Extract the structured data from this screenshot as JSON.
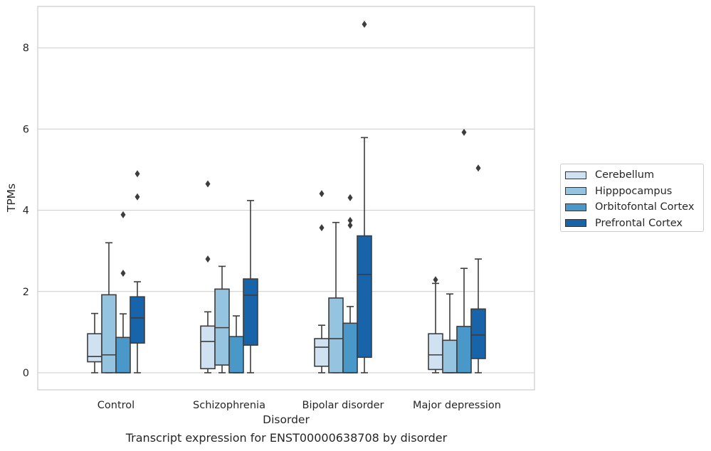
{
  "caption": "Transcript expression for ENST00000638708 by disorder",
  "chart_data": {
    "type": "boxplot",
    "title": "",
    "xlabel": "Disorder",
    "ylabel": "TPMs",
    "categories": [
      "Control",
      "Schizophrenia",
      "Bipolar disorder",
      "Major depression"
    ],
    "ylim": [
      -0.4,
      9.1
    ],
    "yticks": [
      "0",
      "2",
      "4",
      "6",
      "8"
    ],
    "grid": "horizontal",
    "legend_position": "right",
    "series": [
      {
        "name": "Cerebellum",
        "color": "#d0e1f2",
        "boxes": [
          {
            "whisker_low": 0.0,
            "q1": 0.27,
            "median": 0.4,
            "q3": 0.96,
            "whisker_high": 1.46,
            "outliers": []
          },
          {
            "whisker_low": 0.0,
            "q1": 0.1,
            "median": 0.77,
            "q3": 1.15,
            "whisker_high": 1.5,
            "outliers": [
              2.8,
              4.65
            ]
          },
          {
            "whisker_low": 0.0,
            "q1": 0.16,
            "median": 0.63,
            "q3": 0.84,
            "whisker_high": 1.17,
            "outliers": [
              3.57,
              4.41
            ]
          },
          {
            "whisker_low": 0.0,
            "q1": 0.08,
            "median": 0.44,
            "q3": 0.96,
            "whisker_high": 2.2,
            "outliers": [
              2.29
            ]
          }
        ]
      },
      {
        "name": "Hipppocampus",
        "color": "#94c4df",
        "boxes": [
          {
            "whisker_low": 0.0,
            "q1": 0.0,
            "median": 0.44,
            "q3": 1.92,
            "whisker_high": 3.2,
            "outliers": []
          },
          {
            "whisker_low": 0.0,
            "q1": 0.19,
            "median": 1.11,
            "q3": 2.06,
            "whisker_high": 2.62,
            "outliers": []
          },
          {
            "whisker_low": 0.0,
            "q1": 0.0,
            "median": 0.84,
            "q3": 1.84,
            "whisker_high": 3.7,
            "outliers": []
          },
          {
            "whisker_low": 0.0,
            "q1": 0.0,
            "median": 0.0,
            "q3": 0.8,
            "whisker_high": 1.94,
            "outliers": []
          }
        ]
      },
      {
        "name": "Orbitofontal Cortex",
        "color": "#4a98c9",
        "boxes": [
          {
            "whisker_low": 0.0,
            "q1": 0.0,
            "median": 0.0,
            "q3": 0.87,
            "whisker_high": 1.45,
            "outliers": [
              2.45,
              3.89
            ]
          },
          {
            "whisker_low": 0.0,
            "q1": 0.0,
            "median": 0.0,
            "q3": 0.89,
            "whisker_high": 1.4,
            "outliers": []
          },
          {
            "whisker_low": 0.0,
            "q1": 0.0,
            "median": 0.0,
            "q3": 1.22,
            "whisker_high": 1.63,
            "outliers": [
              3.63,
              3.75,
              4.31
            ]
          },
          {
            "whisker_low": 0.0,
            "q1": 0.0,
            "median": 0.0,
            "q3": 1.14,
            "whisker_high": 2.57,
            "outliers": [
              5.92
            ]
          }
        ]
      },
      {
        "name": "Prefrontal Cortex",
        "color": "#1764ab",
        "boxes": [
          {
            "whisker_low": 0.0,
            "q1": 0.73,
            "median": 1.35,
            "q3": 1.87,
            "whisker_high": 2.24,
            "outliers": [
              4.33,
              4.9
            ]
          },
          {
            "whisker_low": 0.0,
            "q1": 0.68,
            "median": 1.91,
            "q3": 2.31,
            "whisker_high": 4.24,
            "outliers": []
          },
          {
            "whisker_low": 0.0,
            "q1": 0.38,
            "median": 2.42,
            "q3": 3.37,
            "whisker_high": 5.79,
            "outliers": [
              8.58
            ]
          },
          {
            "whisker_low": 0.0,
            "q1": 0.35,
            "median": 0.93,
            "q3": 1.57,
            "whisker_high": 2.8,
            "outliers": [
              5.04
            ]
          }
        ]
      }
    ]
  }
}
